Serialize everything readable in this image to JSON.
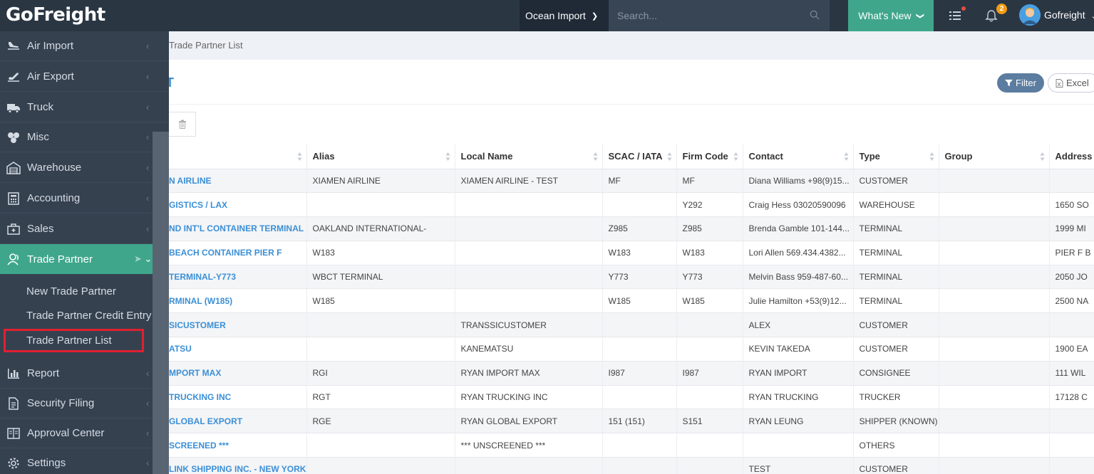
{
  "app": {
    "logo": "GoFreight"
  },
  "topbar": {
    "mode": "Ocean Import",
    "search_placeholder": "Search...",
    "whats_new": "What's New",
    "notification_count": "2",
    "user_name": "Gofreight"
  },
  "breadcrumb": {
    "current": "Trade Partner List"
  },
  "page": {
    "title": "T"
  },
  "toolbar": {
    "filter_label": "Filter",
    "excel_label": "Excel"
  },
  "sidebar": {
    "items": [
      {
        "label": "Air Import",
        "icon": "plane-landing-icon"
      },
      {
        "label": "Air Export",
        "icon": "plane-takeoff-icon"
      },
      {
        "label": "Truck",
        "icon": "truck-icon"
      },
      {
        "label": "Misc",
        "icon": "misc-icon"
      },
      {
        "label": "Warehouse",
        "icon": "warehouse-icon"
      },
      {
        "label": "Accounting",
        "icon": "calculator-icon"
      },
      {
        "label": "Sales",
        "icon": "briefcase-icon"
      },
      {
        "label": "Trade Partner",
        "icon": "users-icon"
      },
      {
        "label": "Report",
        "icon": "bar-chart-icon"
      },
      {
        "label": "Security Filing",
        "icon": "document-icon"
      },
      {
        "label": "Approval Center",
        "icon": "book-icon"
      },
      {
        "label": "Settings",
        "icon": "gear-icon"
      }
    ],
    "sub_items": [
      {
        "label": "New Trade Partner"
      },
      {
        "label": "Trade Partner Credit Entry"
      },
      {
        "label": "Trade Partner List"
      }
    ]
  },
  "table": {
    "headers": [
      "",
      "Alias",
      "Local Name",
      "SCAC / IATA",
      "Firm Code",
      "Contact",
      "Type",
      "Group",
      "Address"
    ],
    "rows": [
      [
        "N AIRLINE",
        "XIAMEN AIRLINE",
        "XIAMEN AIRLINE - TEST",
        "MF",
        "MF",
        "Diana Williams +98(9)15...",
        "CUSTOMER",
        "",
        ""
      ],
      [
        "GISTICS / LAX",
        "",
        "",
        "",
        "Y292",
        "Craig Hess 03020590096",
        "WAREHOUSE",
        "",
        "1650 SO"
      ],
      [
        "ND INT'L CONTAINER TERMINAL",
        "OAKLAND INTERNATIONAL-",
        "",
        "Z985",
        "Z985",
        "Brenda Gamble 101-144...",
        "TERMINAL",
        "",
        "1999 MI"
      ],
      [
        "BEACH CONTAINER PIER F",
        "W183",
        "",
        "W183",
        "W183",
        "Lori Allen 569.434.4382...",
        "TERMINAL",
        "",
        "PIER F B"
      ],
      [
        "TERMINAL-Y773",
        "WBCT TERMINAL",
        "",
        "Y773",
        "Y773",
        "Melvin Bass 959-487-60...",
        "TERMINAL",
        "",
        "2050 JO"
      ],
      [
        "RMINAL (W185)",
        "W185",
        "",
        "W185",
        "W185",
        "Julie Hamilton +53(9)12...",
        "TERMINAL",
        "",
        "2500 NA"
      ],
      [
        "SICUSTOMER",
        "",
        "TRANSSICUSTOMER",
        "",
        "",
        "ALEX",
        "CUSTOMER",
        "",
        ""
      ],
      [
        "ATSU",
        "",
        "KANEMATSU",
        "",
        "",
        "KEVIN TAKEDA",
        "CUSTOMER",
        "",
        "1900 EA"
      ],
      [
        "MPORT MAX",
        "RGI",
        "RYAN IMPORT MAX",
        "I987",
        "I987",
        "RYAN IMPORT",
        "CONSIGNEE",
        "",
        "111 WIL"
      ],
      [
        "TRUCKING INC",
        "RGT",
        "RYAN TRUCKING INC",
        "",
        "",
        "RYAN TRUCKING",
        "TRUCKER",
        "",
        "17128 C"
      ],
      [
        "GLOBAL EXPORT",
        "RGE",
        "RYAN GLOBAL EXPORT",
        "151 (151)",
        "S151",
        "RYAN LEUNG",
        "SHIPPER (KNOWN)",
        "",
        ""
      ],
      [
        "SCREENED ***",
        "",
        "*** UNSCREENED ***",
        "",
        "",
        "",
        "OTHERS",
        "",
        ""
      ],
      [
        "LINK SHIPPING INC. - NEW YORK",
        "",
        "",
        "",
        "",
        "TEST",
        "CUSTOMER",
        "",
        ""
      ]
    ]
  }
}
